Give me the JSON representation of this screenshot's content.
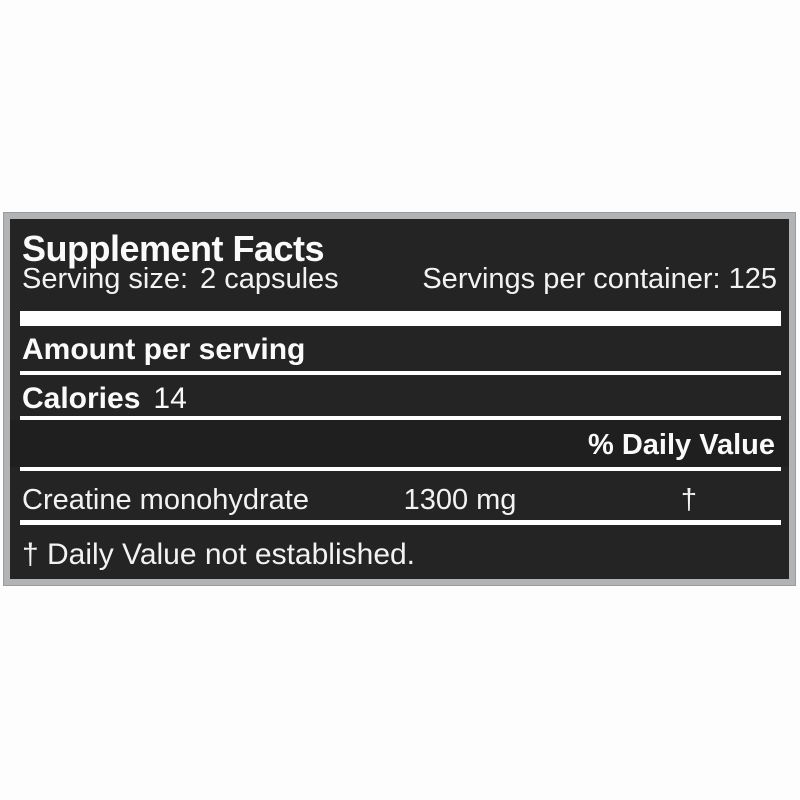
{
  "background_color": "#fdfdfd",
  "label": {
    "frame_color": "#b1b3b5",
    "panel_color": "#242424",
    "text_color": "#f7f7f7",
    "title": "Supplement Facts",
    "serving_size_label": "Serving size:",
    "serving_size_value": "2 capsules",
    "servings_per_container": "Servings per container: 125",
    "amount_per_serving_heading": "Amount per serving",
    "calories_label": "Calories",
    "calories_value": "14",
    "daily_value_heading": "% Daily Value",
    "ingredients": [
      {
        "name": "Creatine monohydrate",
        "amount": "1300 mg",
        "daily_value": "†"
      }
    ],
    "footnote": "† Daily Value not established."
  }
}
